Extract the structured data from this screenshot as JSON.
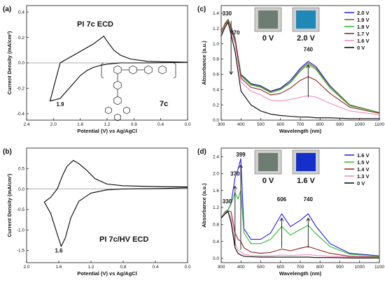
{
  "chart_data": [
    {
      "id": "a",
      "panel_label": "(a)",
      "type": "line",
      "title": "PI 7c ECD",
      "xlabel": "Potential (V) vs Ag/AgCl",
      "ylabel": "Current Density (mA/cm²)",
      "xlim": [
        2.4,
        0.0
      ],
      "ylim": [
        -0.45,
        0.45
      ],
      "xticks": [
        "2.4",
        "2.0",
        "1.6",
        "1.2",
        "0.8",
        "0.4",
        "0.0"
      ],
      "yticks": [
        "-0.4",
        "-0.2",
        "0.0",
        "0.2",
        "0.4"
      ],
      "annotations": [
        {
          "text": "1.9",
          "x": 1.9,
          "y": -0.34
        }
      ],
      "compound_label": "7c",
      "series": [
        {
          "color": "#000000",
          "x": [
            0.0,
            0.3,
            0.6,
            0.85,
            1.0,
            1.1,
            1.2,
            1.25,
            1.3,
            1.4,
            1.5,
            1.6,
            1.7,
            1.8,
            1.9,
            2.05,
            1.9,
            1.8,
            1.7,
            1.6,
            1.5,
            1.4,
            1.3,
            1.2,
            1.1,
            1.0,
            0.8,
            0.6,
            0.3,
            0.0
          ],
          "y": [
            0.005,
            0.008,
            0.012,
            0.03,
            0.06,
            0.1,
            0.17,
            0.21,
            0.19,
            0.15,
            0.12,
            0.09,
            0.06,
            0.03,
            0.0,
            -0.3,
            -0.28,
            -0.22,
            -0.16,
            -0.1,
            -0.06,
            -0.035,
            -0.02,
            -0.01,
            -0.005,
            0.0,
            0.0,
            0.0,
            0.002,
            0.005
          ]
        }
      ]
    },
    {
      "id": "b",
      "panel_label": "(b)",
      "type": "line",
      "title": "PI 7c/HV ECD",
      "xlabel": "Potential (V) vs Ag/AgCl",
      "ylabel": "Current Density (mA/cm²)",
      "xlim": [
        2.0,
        0.0
      ],
      "ylim": [
        -1.8,
        1.0
      ],
      "xticks": [
        "2.0",
        "1.6",
        "1.2",
        "0.8",
        "0.4",
        "0.0"
      ],
      "yticks": [
        "-1.5",
        "-1.0",
        "-0.5",
        "0.0",
        "0.5"
      ],
      "annotations": [
        {
          "text": "1.6",
          "x": 1.6,
          "y": -1.55
        }
      ],
      "series": [
        {
          "color": "#000000",
          "x": [
            0.0,
            0.4,
            0.8,
            1.0,
            1.15,
            1.25,
            1.35,
            1.42,
            1.5,
            1.55,
            1.62,
            1.7,
            1.78,
            1.78,
            1.7,
            1.62,
            1.57,
            1.52,
            1.45,
            1.35,
            1.2,
            1.0,
            0.8,
            0.4,
            0.0
          ],
          "y": [
            0.05,
            0.06,
            0.08,
            0.12,
            0.25,
            0.45,
            0.62,
            0.7,
            0.55,
            0.35,
            0.0,
            -0.2,
            -0.32,
            -0.32,
            -0.6,
            -1.1,
            -1.4,
            -1.2,
            -0.7,
            -0.3,
            -0.1,
            -0.02,
            0.0,
            0.01,
            0.03
          ]
        }
      ]
    },
    {
      "id": "c",
      "panel_label": "(c)",
      "type": "line",
      "xlabel": "Wavelength (nm)",
      "ylabel": "Absorbance (a.u.)",
      "xlim": [
        300,
        1100
      ],
      "ylim": [
        0.0,
        1.5
      ],
      "xticks": [
        "300",
        "400",
        "500",
        "600",
        "700",
        "800",
        "900",
        "1000",
        "1100"
      ],
      "yticks": [
        "0.0",
        "0.2",
        "0.4",
        "0.6",
        "0.8",
        "1.0",
        "1.2",
        "1.4"
      ],
      "annotations": [
        {
          "text": "330",
          "x": 330,
          "y": 1.37
        },
        {
          "text": "370",
          "x": 370,
          "y": 1.12
        },
        {
          "text": "740",
          "x": 740,
          "y": 0.9
        }
      ],
      "inset_labels": [
        "0 V",
        "2.0 V"
      ],
      "legend_position": "top-right",
      "x": [
        300,
        320,
        335,
        350,
        370,
        400,
        450,
        500,
        550,
        600,
        650,
        700,
        740,
        780,
        850,
        950,
        1100
      ],
      "series": [
        {
          "name": "2.0 V",
          "color": "#1f1fd6",
          "values": [
            1.15,
            1.27,
            1.32,
            1.22,
            1.08,
            0.6,
            0.48,
            0.45,
            0.38,
            0.42,
            0.52,
            0.68,
            0.77,
            0.7,
            0.45,
            0.2,
            0.1
          ]
        },
        {
          "name": "1.9 V",
          "color": "#7a5a1e",
          "values": [
            1.15,
            1.27,
            1.32,
            1.22,
            1.07,
            0.59,
            0.47,
            0.44,
            0.37,
            0.41,
            0.5,
            0.66,
            0.75,
            0.68,
            0.44,
            0.2,
            0.1
          ]
        },
        {
          "name": "1.8 V",
          "color": "#2db82d",
          "values": [
            1.14,
            1.26,
            1.31,
            1.21,
            1.06,
            0.58,
            0.46,
            0.43,
            0.36,
            0.4,
            0.49,
            0.64,
            0.73,
            0.66,
            0.42,
            0.19,
            0.1
          ]
        },
        {
          "name": "1.7 V",
          "color": "#8b2020",
          "values": [
            1.13,
            1.25,
            1.3,
            1.2,
            1.04,
            0.55,
            0.43,
            0.4,
            0.33,
            0.35,
            0.42,
            0.52,
            0.57,
            0.52,
            0.35,
            0.17,
            0.09
          ]
        },
        {
          "name": "1.6 V",
          "color": "#f08ac0",
          "values": [
            1.12,
            1.24,
            1.29,
            1.18,
            1.0,
            0.5,
            0.38,
            0.33,
            0.26,
            0.25,
            0.27,
            0.3,
            0.32,
            0.3,
            0.22,
            0.12,
            0.07
          ]
        },
        {
          "name": "0 V",
          "color": "#000000",
          "values": [
            1.1,
            1.22,
            1.28,
            1.12,
            0.9,
            0.38,
            0.2,
            0.12,
            0.08,
            0.06,
            0.05,
            0.04,
            0.04,
            0.03,
            0.03,
            0.02,
            0.02
          ]
        }
      ]
    },
    {
      "id": "d",
      "panel_label": "(d)",
      "type": "line",
      "xlabel": "Wavelength (nm)",
      "ylabel": "Absorbance (a.u.)",
      "xlim": [
        300,
        1100
      ],
      "ylim": [
        -0.1,
        2.6
      ],
      "xticks": [
        "300",
        "400",
        "500",
        "600",
        "700",
        "800",
        "900",
        "1000",
        "1100"
      ],
      "yticks": [
        "0.0",
        "0.4",
        "0.8",
        "1.2",
        "1.6",
        "2.0",
        "2.4"
      ],
      "annotations": [
        {
          "text": "330",
          "x": 330,
          "y": 1.3
        },
        {
          "text": "370",
          "x": 370,
          "y": 1.95
        },
        {
          "text": "399",
          "x": 399,
          "y": 2.4
        },
        {
          "text": "606",
          "x": 606,
          "y": 1.35
        },
        {
          "text": "740",
          "x": 740,
          "y": 1.35
        }
      ],
      "inset_labels": [
        "0 V",
        "1.6 V"
      ],
      "legend_position": "top-right",
      "x": [
        300,
        320,
        335,
        350,
        370,
        385,
        399,
        415,
        450,
        500,
        550,
        606,
        650,
        700,
        740,
        780,
        850,
        950,
        1100
      ],
      "series": [
        {
          "name": "1.6 V",
          "color": "#1f1fd6",
          "values": [
            0.95,
            1.1,
            1.15,
            1.3,
            1.9,
            2.1,
            2.35,
            0.7,
            0.45,
            0.45,
            0.6,
            1.05,
            0.75,
            0.9,
            1.05,
            0.75,
            0.35,
            0.12,
            0.06
          ]
        },
        {
          "name": "1.5 V",
          "color": "#2db82d",
          "values": [
            0.95,
            1.1,
            1.15,
            1.28,
            1.55,
            1.4,
            1.6,
            0.6,
            0.35,
            0.35,
            0.45,
            0.75,
            0.55,
            0.68,
            0.78,
            0.58,
            0.28,
            0.1,
            0.05
          ]
        },
        {
          "name": "1.4 V",
          "color": "#8b2020",
          "values": [
            0.95,
            1.08,
            1.12,
            1.1,
            0.6,
            0.45,
            0.4,
            0.25,
            0.15,
            0.12,
            0.14,
            0.22,
            0.18,
            0.24,
            0.28,
            0.22,
            0.12,
            0.05,
            0.03
          ]
        },
        {
          "name": "1.3 V",
          "color": "#f08ac0",
          "values": [
            0.95,
            1.07,
            1.1,
            0.95,
            0.35,
            0.2,
            0.15,
            0.1,
            0.07,
            0.06,
            0.06,
            0.08,
            0.07,
            0.08,
            0.09,
            0.07,
            0.05,
            0.03,
            0.02
          ]
        },
        {
          "name": "0 V",
          "color": "#000000",
          "values": [
            0.95,
            1.05,
            1.1,
            0.85,
            0.25,
            0.12,
            0.08,
            0.05,
            0.04,
            0.03,
            0.03,
            0.03,
            0.03,
            0.03,
            0.03,
            0.02,
            0.02,
            0.01,
            0.01
          ]
        }
      ]
    }
  ]
}
